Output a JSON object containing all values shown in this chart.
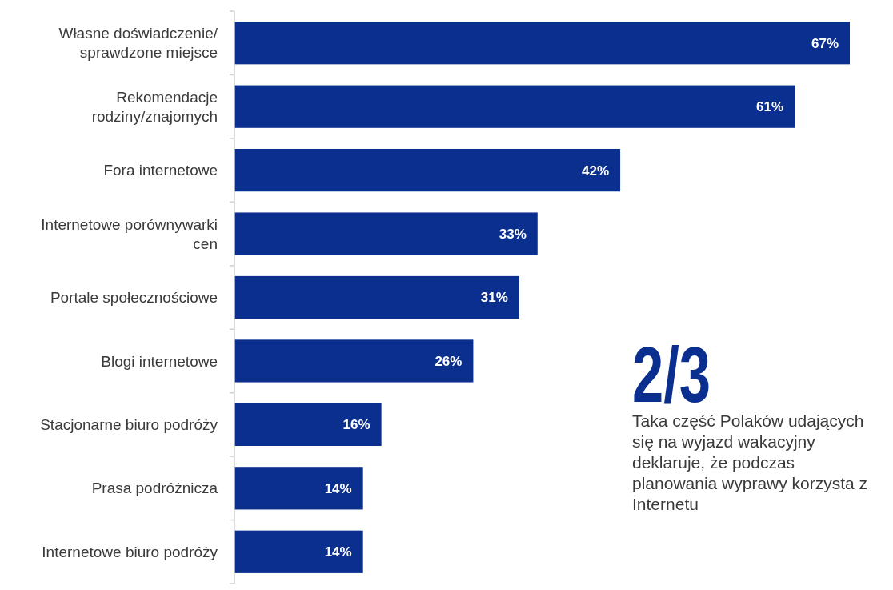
{
  "chart_data": {
    "type": "bar",
    "orientation": "horizontal",
    "categories": [
      "Własne doświadczenie/ sprawdzone miejsce",
      "Rekomendacje rodziny/znajomych",
      "Fora internetowe",
      "Internetowe porównywarki cen",
      "Portale społecznościowe",
      "Blogi internetowe",
      "Stacjonarne biuro podróży",
      "Prasa podróżnicza",
      "Internetowe biuro podróży"
    ],
    "values": [
      67,
      61,
      42,
      33,
      31,
      26,
      16,
      14,
      14
    ],
    "value_labels": [
      "67%",
      "61%",
      "42%",
      "33%",
      "31%",
      "26%",
      "16%",
      "14%",
      "14%"
    ],
    "color": "#0b2f8f",
    "annotations": [
      "2/3",
      "Taka część Polaków udających się na wyjazd wakacyjny deklaruje, że podczas planowania wyprawy korzysta z Internetu"
    ],
    "tick_labels": "y"
  }
}
